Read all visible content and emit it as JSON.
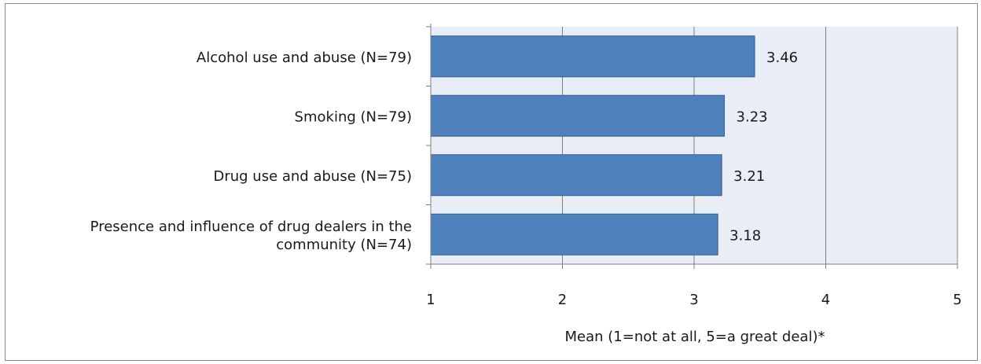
{
  "chart_data": {
    "type": "bar",
    "orientation": "horizontal",
    "categories": [
      "Alcohol use and abuse (N=79)",
      "Smoking (N=79)",
      "Drug use and abuse (N=75)",
      "Presence and influence of drug dealers in the community (N=74)"
    ],
    "category_lines": [
      [
        "Alcohol use and abuse (N=79)"
      ],
      [
        "Smoking (N=79)"
      ],
      [
        "Drug use and abuse (N=75)"
      ],
      [
        "Presence and influence of drug dealers in the",
        "community (N=74)"
      ]
    ],
    "values": [
      3.46,
      3.23,
      3.21,
      3.18
    ],
    "value_labels": [
      "3.46",
      "3.23",
      "3.21",
      "3.18"
    ],
    "xlim": [
      1,
      5
    ],
    "xticks": [
      "1",
      "2",
      "3",
      "4",
      "5"
    ],
    "xlabel": "Mean (1=not at all, 5=a great deal)*",
    "ylabel": "",
    "title": "",
    "grid": true,
    "legend": "none",
    "colors": {
      "bar": "#4f81bd",
      "bar_edge": "#385d8a",
      "plot_background": "#e9edf6",
      "grid": "#7f7f7f"
    }
  }
}
